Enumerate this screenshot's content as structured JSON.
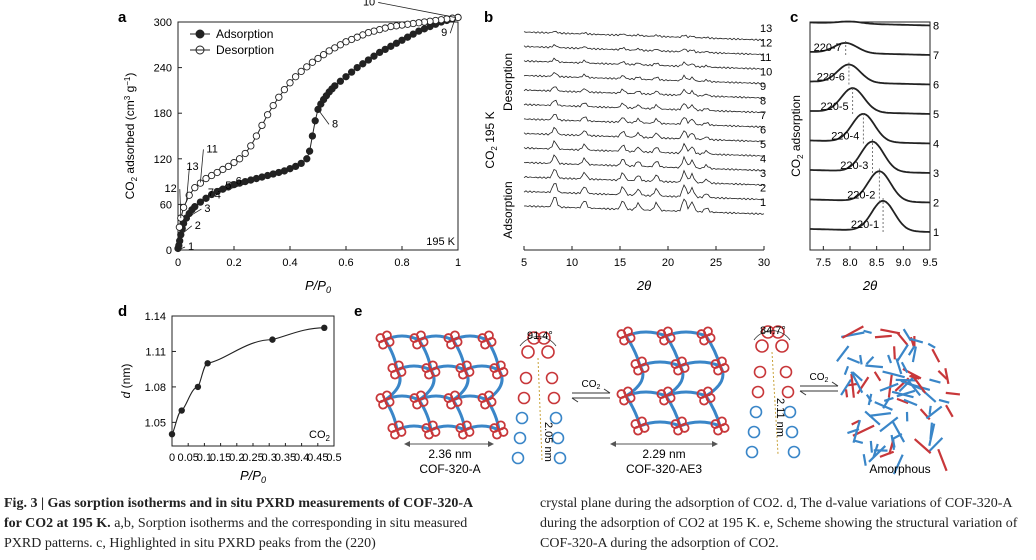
{
  "panels": {
    "a": {
      "label": "a",
      "legend": [
        "Adsorption",
        "Desorption"
      ],
      "ylabel": "CO2 adsorbed (cm3 g-1)",
      "xlabel": "P/P0",
      "temp": "195 K"
    },
    "b": {
      "label": "b",
      "ylabel": "CO2 195 K",
      "desorption_label": "Desorption",
      "adsorption_label": "Adsorption",
      "xlabel": "2θ"
    },
    "c": {
      "label": "c",
      "ylabel": "CO2 adsorption",
      "xlabel": "2θ"
    },
    "d": {
      "label": "d",
      "ylabel": "d (nm)",
      "xlabel": "P/P0",
      "gas": "CO2"
    },
    "e": {
      "label": "e",
      "angle1": "91.4°",
      "length1": "2.05 nm",
      "width1": "2.36 nm",
      "name1": "COF-320-A",
      "arrow1": "CO2",
      "angle2": "84.7°",
      "length2": "2.11 nm",
      "width2": "2.29 nm",
      "name2": "COF-320-AE3",
      "arrow2": "CO2",
      "name3": "Amorphous"
    }
  },
  "chart_data": [
    {
      "id": "a",
      "type": "scatter",
      "xlabel": "P/P0",
      "ylabel": "CO2 adsorbed (cm3 g-1)",
      "xlim": [
        0,
        1.0
      ],
      "ylim": [
        0,
        300
      ],
      "xticks": [
        0,
        0.2,
        0.4,
        0.6,
        0.8,
        1.0
      ],
      "yticks": [
        0,
        60,
        120,
        180,
        240,
        300
      ],
      "series": [
        {
          "name": "Adsorption",
          "color": "#222222",
          "fill": "#222222",
          "x": [
            0.0,
            0.003,
            0.006,
            0.01,
            0.015,
            0.02,
            0.03,
            0.04,
            0.05,
            0.06,
            0.08,
            0.1,
            0.12,
            0.14,
            0.16,
            0.18,
            0.2,
            0.22,
            0.24,
            0.26,
            0.28,
            0.3,
            0.32,
            0.34,
            0.36,
            0.38,
            0.4,
            0.42,
            0.44,
            0.46,
            0.47,
            0.48,
            0.49,
            0.5,
            0.51,
            0.52,
            0.53,
            0.54,
            0.55,
            0.56,
            0.58,
            0.6,
            0.62,
            0.64,
            0.66,
            0.68,
            0.7,
            0.72,
            0.74,
            0.76,
            0.78,
            0.8,
            0.82,
            0.84,
            0.86,
            0.88,
            0.9,
            0.92,
            0.94,
            0.96,
            0.98,
            1.0
          ],
          "y": [
            2,
            6,
            12,
            20,
            28,
            35,
            42,
            48,
            53,
            57,
            63,
            68,
            73,
            77,
            80,
            83,
            86,
            88,
            90,
            92,
            94,
            96,
            98,
            100,
            102,
            104,
            107,
            110,
            114,
            120,
            130,
            150,
            170,
            185,
            192,
            198,
            203,
            208,
            212,
            216,
            222,
            228,
            234,
            240,
            245,
            250,
            255,
            260,
            264,
            268,
            272,
            276,
            280,
            284,
            288,
            291,
            294,
            297,
            300,
            302,
            304,
            306
          ]
        },
        {
          "name": "Desorption",
          "color": "#222222",
          "fill": "#ffffff",
          "x": [
            1.0,
            0.98,
            0.96,
            0.94,
            0.92,
            0.9,
            0.88,
            0.86,
            0.84,
            0.82,
            0.8,
            0.78,
            0.76,
            0.74,
            0.72,
            0.7,
            0.68,
            0.66,
            0.64,
            0.62,
            0.6,
            0.58,
            0.56,
            0.54,
            0.52,
            0.5,
            0.48,
            0.46,
            0.44,
            0.42,
            0.4,
            0.38,
            0.36,
            0.34,
            0.32,
            0.3,
            0.28,
            0.26,
            0.24,
            0.22,
            0.2,
            0.18,
            0.16,
            0.14,
            0.12,
            0.1,
            0.08,
            0.06,
            0.04,
            0.02,
            0.01,
            0.005
          ],
          "y": [
            306,
            305,
            304,
            303,
            302,
            301,
            300,
            299,
            298,
            297,
            296,
            295,
            294,
            292,
            290,
            288,
            286,
            283,
            280,
            277,
            274,
            270,
            266,
            262,
            257,
            252,
            247,
            241,
            235,
            228,
            220,
            211,
            201,
            190,
            178,
            164,
            150,
            137,
            127,
            120,
            115,
            110,
            106,
            102,
            98,
            94,
            88,
            82,
            72,
            56,
            42,
            30
          ]
        }
      ],
      "annotations": [
        "1",
        "2",
        "3",
        "4",
        "5",
        "6",
        "7",
        "8",
        "9",
        "10",
        "11",
        "12",
        "13"
      ],
      "annotation_points": [
        [
          0.0,
          0
        ],
        [
          0.01,
          20
        ],
        [
          0.03,
          42
        ],
        [
          0.06,
          57
        ],
        [
          0.09,
          67
        ],
        [
          0.12,
          73
        ],
        [
          0.35,
          100
        ],
        [
          0.5,
          185
        ],
        [
          0.99,
          305
        ],
        [
          0.99,
          306
        ],
        [
          0.08,
          89
        ],
        [
          0.01,
          42
        ],
        [
          0.03,
          63
        ]
      ]
    },
    {
      "id": "b",
      "type": "line",
      "xlabel": "2θ",
      "xlim": [
        5,
        30
      ],
      "xticks": [
        5,
        10,
        15,
        20,
        25,
        30
      ],
      "series_labels": [
        "1",
        "2",
        "3",
        "4",
        "5",
        "6",
        "7",
        "8",
        "9",
        "10",
        "11",
        "12",
        "13"
      ]
    },
    {
      "id": "c",
      "type": "line",
      "xlabel": "2θ",
      "xlim": [
        7.25,
        9.5
      ],
      "xticks": [
        7.5,
        8.0,
        8.5,
        9.0,
        9.5
      ],
      "series_labels": [
        "1",
        "2",
        "3",
        "4",
        "5",
        "6",
        "7",
        "8"
      ],
      "peak_labels": [
        "220-1",
        "220-2",
        "220-3",
        "220-4",
        "220-5",
        "220-6",
        "220-7"
      ],
      "peak_positions": [
        8.62,
        8.55,
        8.42,
        8.25,
        8.05,
        7.98,
        7.92
      ]
    },
    {
      "id": "d",
      "type": "line",
      "xlabel": "P/P0",
      "ylabel": "d (nm)",
      "xlim": [
        0,
        0.5
      ],
      "ylim": [
        1.03,
        1.14
      ],
      "xticks": [
        0,
        0.05,
        0.1,
        0.15,
        0.2,
        0.25,
        0.3,
        0.35,
        0.4,
        0.45,
        0.5
      ],
      "yticks": [
        1.05,
        1.08,
        1.11,
        1.14
      ],
      "x": [
        0.0,
        0.03,
        0.08,
        0.11,
        0.31,
        0.47
      ],
      "y": [
        1.04,
        1.06,
        1.08,
        1.1,
        1.12,
        1.13
      ]
    }
  ],
  "caption": {
    "bold": "Fig. 3 | Gas sorption isotherms and in situ PXRD measurements of COF-320-A for CO2 at 195 K.",
    "left_rest": "a,b, Sorption isotherms and the corresponding in situ measured PXRD patterns. c, Highlighted in situ PXRD peaks from the (220)",
    "right": "crystal plane during the adsorption of CO2. d, The d-value variations of COF-320-A during the adsorption of CO2 at 195 K. e, Scheme showing the structural variation of COF-320-A during the adsorption of CO2."
  }
}
